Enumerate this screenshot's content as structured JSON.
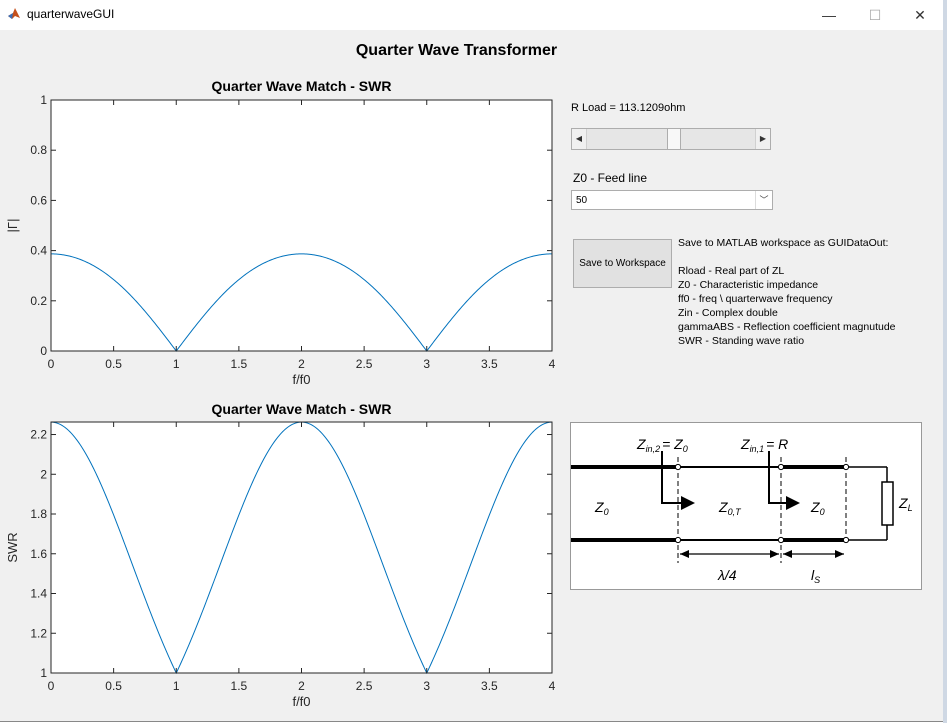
{
  "window": {
    "title": "quarterwaveGUI",
    "minimize_glyph": "—",
    "maximize_glyph": "☐",
    "close_glyph": "✕",
    "app_icon": "matlab-icon"
  },
  "figure": {
    "title": "Quarter Wave Transformer"
  },
  "controls": {
    "rload_label": "R Load = 113.1209ohm",
    "rload_slider_fraction": 0.52,
    "z0_label": "Z0 - Feed line",
    "z0_selected": "50",
    "save_button": "Save to Workspace",
    "info_lines": [
      "Save to MATLAB workspace as GUIDataOut:",
      "",
      "Rload - Real part of ZL",
      "Z0 - Characteristic impedance",
      "ff0 - freq \\ quarterwave frequency",
      "Zin - Complex double",
      "gammaABS - Reflection coefficient magnutude",
      "SWR - Standing wave ratio"
    ]
  },
  "schematic": {
    "zin2": "Z",
    "zin2_sub": "in,2",
    "zin2_rhs": "= Z",
    "zin2_rhs_sub": "0",
    "zin1": "Z",
    "zin1_sub": "in,1",
    "zin1_rhs": "= R",
    "z0_left": "Z",
    "z0_left_sub": "0",
    "z0t": "Z",
    "z0t_sub": "0,T",
    "z0_right": "Z",
    "z0_right_sub": "0",
    "zl": "Z",
    "zl_sub": "L",
    "lambda4": "λ/4",
    "ls": "l",
    "ls_sub": "S"
  },
  "chart_data": [
    {
      "type": "line",
      "title": "Quarter Wave Match - SWR",
      "xlabel": "f/f0",
      "ylabel": "|Γ|",
      "xlim": [
        0,
        4
      ],
      "ylim": [
        0,
        1
      ],
      "xticks": [
        "0",
        "0.5",
        "1",
        "1.5",
        "2",
        "2.5",
        "3",
        "3.5",
        "4"
      ],
      "yticks": [
        "0",
        "0.2",
        "0.4",
        "0.6",
        "0.8",
        "1"
      ],
      "grid": false,
      "line_color": "#0072bd",
      "formula": "gamma",
      "x": [
        0,
        0.25,
        0.5,
        0.75,
        1,
        1.25,
        1.5,
        1.75,
        2,
        2.25,
        2.5,
        2.75,
        3,
        3.25,
        3.5,
        3.75,
        4
      ],
      "y": [
        0.387,
        0.359,
        0.29,
        0.168,
        0,
        0.168,
        0.29,
        0.359,
        0.387,
        0.359,
        0.29,
        0.168,
        0,
        0.168,
        0.29,
        0.359,
        0.387
      ]
    },
    {
      "type": "line",
      "title": "Quarter Wave Match - SWR",
      "xlabel": "f/f0",
      "ylabel": "SWR",
      "xlim": [
        0,
        4
      ],
      "ylim": [
        1,
        2.263
      ],
      "xticks": [
        "0",
        "0.5",
        "1",
        "1.5",
        "2",
        "2.5",
        "3",
        "3.5",
        "4"
      ],
      "yticks": [
        "1",
        "1.2",
        "1.4",
        "1.6",
        "1.8",
        "2",
        "2.2"
      ],
      "grid": false,
      "line_color": "#0072bd",
      "formula": "swr",
      "x": [
        0,
        0.25,
        0.5,
        0.75,
        1,
        1.25,
        1.5,
        1.75,
        2,
        2.25,
        2.5,
        2.75,
        3,
        3.25,
        3.5,
        3.75,
        4
      ],
      "y": [
        2.263,
        2.12,
        1.816,
        1.404,
        1,
        1.404,
        1.816,
        2.12,
        2.263,
        2.12,
        1.816,
        1.404,
        1,
        1.404,
        1.816,
        2.12,
        2.263
      ]
    }
  ]
}
